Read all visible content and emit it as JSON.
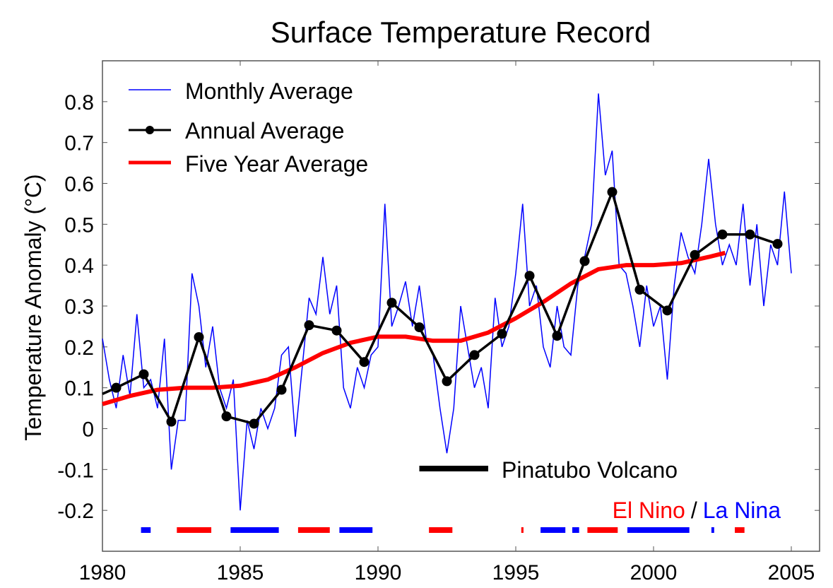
{
  "chart_data": {
    "type": "line",
    "title": "Surface Temperature Record",
    "xlabel": "",
    "ylabel": "Temperature Anomaly (°C)",
    "xlim": [
      1980,
      2006
    ],
    "ylim": [
      -0.3,
      0.9
    ],
    "x_ticks": [
      1980,
      1985,
      1990,
      1995,
      2000,
      2005
    ],
    "x_tick_labels": [
      "1980",
      "1985",
      "1990",
      "1995",
      "2000",
      "2005"
    ],
    "y_ticks": [
      -0.2,
      -0.1,
      0,
      0.1,
      0.2,
      0.3,
      0.4,
      0.5,
      0.6,
      0.7,
      0.8
    ],
    "y_tick_labels": [
      "-0.2",
      "-0.1",
      "0",
      "0.1",
      "0.2",
      "0.3",
      "0.4",
      "0.5",
      "0.6",
      "0.7",
      "0.8"
    ],
    "grid": false,
    "legend": "top-left",
    "series": [
      {
        "name": "Monthly Average",
        "color": "#0000ff",
        "x_start": 1980.0,
        "x_step": 0.25,
        "values": [
          0.22,
          0.12,
          0.05,
          0.18,
          0.08,
          0.28,
          0.1,
          0.12,
          0.05,
          0.22,
          -0.1,
          0.02,
          0.02,
          0.38,
          0.3,
          0.15,
          0.25,
          0.1,
          0.05,
          0.12,
          -0.2,
          0.02,
          -0.05,
          0.05,
          0.0,
          0.05,
          0.18,
          0.2,
          -0.02,
          0.15,
          0.32,
          0.28,
          0.42,
          0.28,
          0.35,
          0.1,
          0.05,
          0.15,
          0.1,
          0.18,
          0.2,
          0.55,
          0.25,
          0.3,
          0.36,
          0.25,
          0.35,
          0.22,
          0.18,
          0.05,
          -0.06,
          0.05,
          0.3,
          0.2,
          0.1,
          0.15,
          0.05,
          0.32,
          0.2,
          0.25,
          0.38,
          0.55,
          0.3,
          0.35,
          0.2,
          0.15,
          0.3,
          0.2,
          0.18,
          0.35,
          0.42,
          0.5,
          0.82,
          0.62,
          0.68,
          0.4,
          0.38,
          0.3,
          0.2,
          0.35,
          0.25,
          0.3,
          0.12,
          0.35,
          0.48,
          0.42,
          0.38,
          0.5,
          0.66,
          0.5,
          0.4,
          0.45,
          0.4,
          0.55,
          0.35,
          0.5,
          0.3,
          0.45,
          0.4,
          0.58,
          0.38
        ]
      },
      {
        "name": "Annual Average",
        "color": "#000000",
        "x": [
          1980.0,
          1980.5,
          1981.5,
          1982.5,
          1983.5,
          1984.5,
          1985.5,
          1986.5,
          1987.5,
          1988.5,
          1989.5,
          1990.5,
          1991.5,
          1992.5,
          1993.5,
          1994.5,
          1995.5,
          1996.5,
          1997.5,
          1998.5,
          1999.5,
          2000.5,
          2001.5,
          2002.5,
          2003.5,
          2004.5
        ],
        "values": [
          0.085,
          0.1,
          0.133,
          0.017,
          0.224,
          0.03,
          0.012,
          0.095,
          0.253,
          0.24,
          0.163,
          0.308,
          0.248,
          0.116,
          0.18,
          0.232,
          0.374,
          0.227,
          0.41,
          0.579,
          0.34,
          0.289,
          0.425,
          0.475,
          0.475,
          0.452
        ]
      },
      {
        "name": "Five Year Average",
        "color": "#ff0000",
        "x": [
          1980,
          1981,
          1982,
          1983,
          1984,
          1985,
          1986,
          1987,
          1988,
          1989,
          1990,
          1991,
          1992,
          1993,
          1994,
          1995,
          1996,
          1997,
          1998,
          1999,
          2000,
          2001,
          2002,
          2002.6
        ],
        "values": [
          0.06,
          0.08,
          0.095,
          0.1,
          0.1,
          0.105,
          0.12,
          0.15,
          0.185,
          0.21,
          0.225,
          0.225,
          0.215,
          0.215,
          0.235,
          0.27,
          0.31,
          0.355,
          0.39,
          0.4,
          0.4,
          0.405,
          0.42,
          0.43
        ]
      }
    ],
    "annotations": {
      "pinatubo": {
        "label": "Pinatubo Volcano",
        "x_range": [
          1991.5,
          1994.0
        ],
        "color": "#000000"
      },
      "enso_label_el_nino": "El Nino",
      "enso_label_sep": "/",
      "enso_label_la_nina": "La Nina",
      "el_nino_color": "#ff0000",
      "la_nina_color": "#0000ff",
      "enso_periods": [
        {
          "type": "La Nina",
          "start": 1981.4,
          "end": 1981.75
        },
        {
          "type": "El Nino",
          "start": 1982.7,
          "end": 1983.95
        },
        {
          "type": "La Nina",
          "start": 1984.65,
          "end": 1986.4
        },
        {
          "type": "El Nino",
          "start": 1987.1,
          "end": 1988.25
        },
        {
          "type": "La Nina",
          "start": 1988.6,
          "end": 1989.8
        },
        {
          "type": "El Nino",
          "start": 1991.85,
          "end": 1992.7
        },
        {
          "type": "El Nino",
          "start": 1995.2,
          "end": 1995.28
        },
        {
          "type": "La Nina",
          "start": 1995.9,
          "end": 1996.8
        },
        {
          "type": "La Nina",
          "start": 1997.05,
          "end": 1997.3
        },
        {
          "type": "El Nino",
          "start": 1997.6,
          "end": 1998.7
        },
        {
          "type": "La Nina",
          "start": 1999.05,
          "end": 2001.3
        },
        {
          "type": "La Nina",
          "start": 2002.1,
          "end": 2002.2
        },
        {
          "type": "El Nino",
          "start": 2002.95,
          "end": 2003.3
        }
      ]
    }
  }
}
